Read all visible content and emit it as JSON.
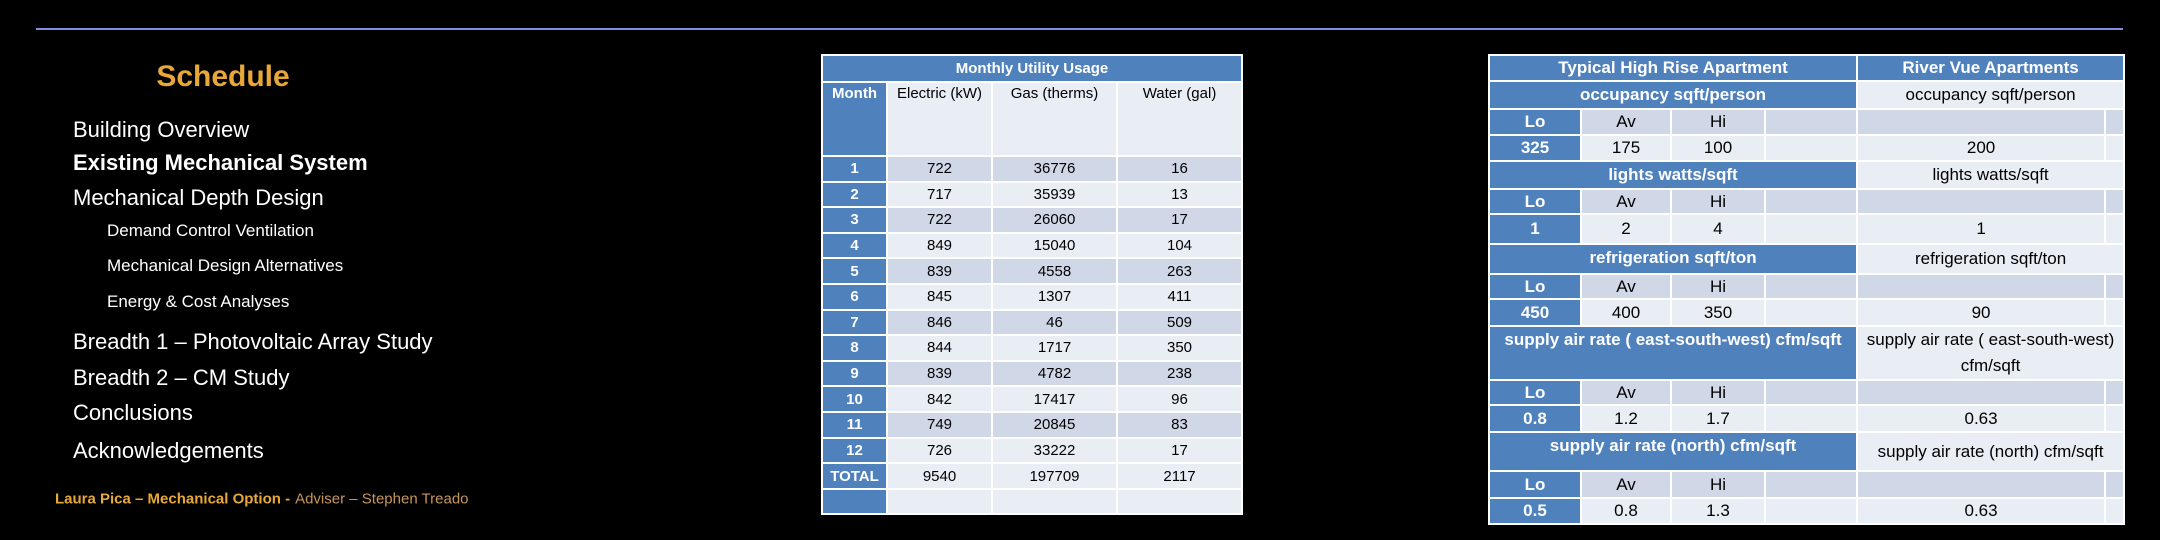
{
  "schedule": {
    "title": "Schedule",
    "items": [
      "Building Overview",
      "Existing Mechanical System",
      "Mechanical Depth Design",
      "Breadth 1 – Photovoltaic Array Study",
      "Breadth 2 – CM Study",
      "Conclusions",
      "Acknowledgements"
    ],
    "subitems": [
      "Demand Control Ventilation",
      "Mechanical Design Alternatives",
      "Energy & Cost Analyses"
    ]
  },
  "footer": {
    "author": "Laura Pica – Mechanical Option -",
    "adviser": "Adviser – Stephen Treado"
  },
  "utility": {
    "title": "Monthly Utility Usage",
    "columns": [
      "Month",
      "Electric (kW)",
      "Gas (therms)",
      "Water (gal)"
    ],
    "rows": [
      [
        1,
        722,
        36776,
        16
      ],
      [
        2,
        717,
        35939,
        13
      ],
      [
        3,
        722,
        26060,
        17
      ],
      [
        4,
        849,
        15040,
        104
      ],
      [
        5,
        839,
        4558,
        263
      ],
      [
        6,
        845,
        1307,
        411
      ],
      [
        7,
        846,
        46,
        509
      ],
      [
        8,
        844,
        1717,
        350
      ],
      [
        9,
        839,
        4782,
        238
      ],
      [
        10,
        842,
        17417,
        96
      ],
      [
        11,
        749,
        20845,
        83
      ],
      [
        12,
        726,
        33222,
        17
      ]
    ],
    "total": {
      "label": "TOTAL",
      "values": [
        9540,
        197709,
        2117
      ]
    }
  },
  "comparison": {
    "headers": [
      "Typical High Rise Apartment",
      "River Vue Apartments"
    ],
    "level_labels": [
      "Lo",
      "Av",
      "Hi"
    ],
    "sections": [
      {
        "title": "occupancy sqft/person",
        "values": [
          325,
          175,
          100
        ],
        "river_vue": 200
      },
      {
        "title": "lights watts/sqft",
        "values": [
          1,
          2,
          4
        ],
        "river_vue": 1
      },
      {
        "title": "refrigeration sqft/ton",
        "values": [
          450,
          400,
          350
        ],
        "river_vue": 90
      },
      {
        "title": "supply air rate ( east-south-west) cfm/sqft",
        "values": [
          0.8,
          1.2,
          1.7
        ],
        "river_vue": 0.63
      },
      {
        "title": "supply air rate (north) cfm/sqft",
        "values": [
          0.5,
          0.8,
          1.3
        ],
        "river_vue": 0.63
      }
    ]
  }
}
